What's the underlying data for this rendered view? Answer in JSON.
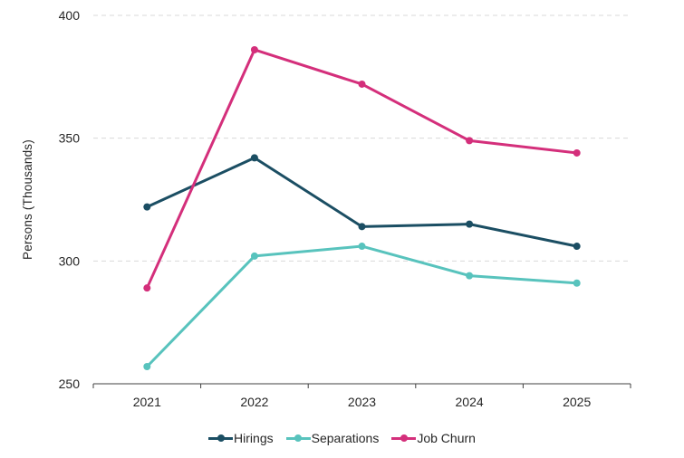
{
  "chart_data": {
    "type": "line",
    "title": "",
    "xlabel": "",
    "ylabel": "Persons (Thousands)",
    "categories": [
      "2021",
      "2022",
      "2023",
      "2024",
      "2025"
    ],
    "series": [
      {
        "name": "Hirings",
        "color": "#1b4e63",
        "values": [
          322,
          342,
          314,
          315,
          306
        ]
      },
      {
        "name": "Separations",
        "color": "#58c3bd",
        "values": [
          257,
          302,
          306,
          294,
          291
        ]
      },
      {
        "name": "Job Churn",
        "color": "#d42f7b",
        "values": [
          289,
          386,
          372,
          349,
          344
        ]
      }
    ],
    "ylim": [
      250,
      400
    ],
    "yticks": [
      250,
      300,
      350,
      400
    ],
    "grid": "horizontal-dashed",
    "gridline_color": "#d9d9d9",
    "axis_color": "#404040",
    "legend_position": "bottom-center"
  }
}
